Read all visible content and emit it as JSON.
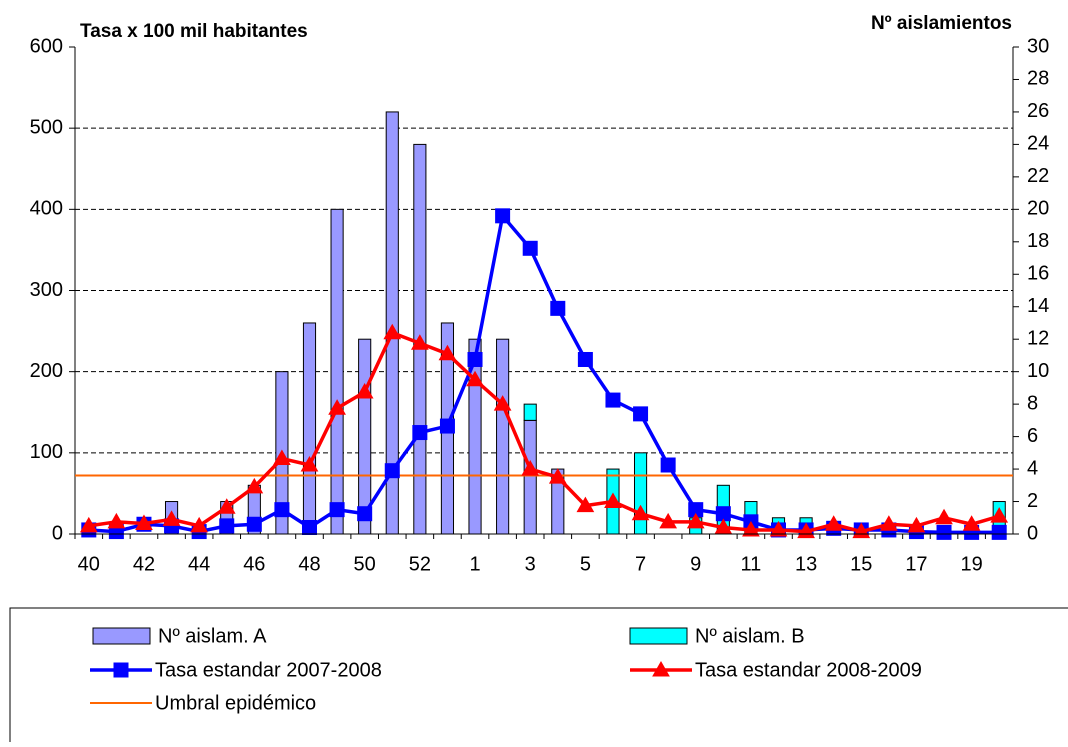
{
  "chart_data": {
    "type": "bar-line",
    "ylabel": "Tasa x 100 mil habitantes",
    "y2label": "Nº aislamientos",
    "categories": [
      "40",
      null,
      "42",
      null,
      "44",
      null,
      "46",
      null,
      "48",
      null,
      "50",
      null,
      "52",
      null,
      "1",
      null,
      "3",
      null,
      "5",
      null,
      "7",
      null,
      "9",
      null,
      "11",
      null,
      "13",
      null,
      "15",
      null,
      "17",
      null,
      "19",
      null
    ],
    "ylim": [
      0,
      600
    ],
    "yticks": [
      0,
      100,
      200,
      300,
      400,
      500,
      600
    ],
    "y2lim": [
      0,
      30
    ],
    "y2ticks": [
      0,
      2,
      4,
      6,
      8,
      10,
      12,
      14,
      16,
      18,
      20,
      22,
      24,
      26,
      28,
      30
    ],
    "grid": true,
    "series": [
      {
        "name": "Nº aislam. A",
        "type": "bar",
        "axis": "y2",
        "color": "#9999ff",
        "values": [
          0,
          0,
          0,
          2,
          0,
          2,
          3,
          10,
          13,
          20,
          12,
          26,
          24,
          13,
          12,
          12,
          7,
          4,
          0,
          0,
          0,
          0,
          0,
          0,
          0,
          0,
          0,
          0,
          0,
          0,
          0,
          0,
          0,
          0
        ]
      },
      {
        "name": "Nº aislam. B",
        "type": "bar",
        "axis": "y2",
        "color": "#00ffff",
        "values": [
          0,
          0,
          0,
          0,
          0,
          0,
          0,
          0,
          0,
          0,
          0,
          0,
          0,
          0,
          0,
          0,
          1,
          0,
          0,
          4,
          5,
          0,
          1,
          3,
          2,
          1,
          1,
          0,
          0,
          0,
          0,
          0,
          0,
          2
        ]
      },
      {
        "name": "Tasa estandar 2007-2008",
        "type": "line",
        "marker": "square",
        "color": "#0000ff",
        "values": [
          5,
          3,
          12,
          10,
          3,
          10,
          12,
          30,
          8,
          30,
          25,
          78,
          125,
          133,
          215,
          392,
          352,
          278,
          215,
          165,
          148,
          85,
          30,
          25,
          15,
          5,
          5,
          7,
          5,
          5,
          3,
          2,
          2,
          2
        ]
      },
      {
        "name": "Tasa estandar 2008-2009",
        "type": "line",
        "marker": "triangle",
        "color": "#ff0000",
        "values": [
          10,
          15,
          13,
          18,
          10,
          33,
          58,
          93,
          85,
          155,
          175,
          248,
          235,
          222,
          190,
          160,
          80,
          70,
          35,
          40,
          25,
          15,
          15,
          8,
          5,
          5,
          3,
          12,
          3,
          12,
          10,
          20,
          12,
          22
        ]
      }
    ],
    "threshold": {
      "name": "Umbral epidémico",
      "color": "#ff6600",
      "value": 72
    }
  }
}
